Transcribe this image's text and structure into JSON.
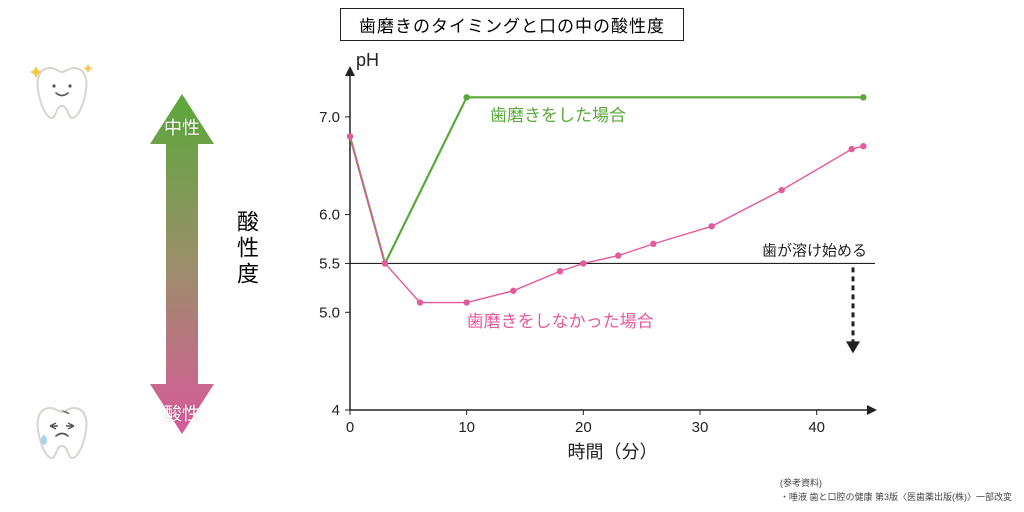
{
  "title": "歯磨きのタイミングと口の中の酸性度",
  "left": {
    "neutral_label": "中性",
    "acid_label": "酸性",
    "vertical_label": "酸性度",
    "grad_top": "#5aa83a",
    "grad_mid": "#9b8f6a",
    "grad_bot": "#d8599a"
  },
  "chart": {
    "type": "line",
    "y_axis_label": "pH",
    "x_axis_label": "時間（分）",
    "xlim": [
      0,
      45
    ],
    "ylim": [
      4,
      7.5
    ],
    "xticks": [
      0,
      10,
      20,
      30,
      40
    ],
    "yticks": [
      4,
      5.0,
      5.5,
      6.0,
      7.0
    ],
    "ytick_labels": [
      "4",
      "5.0",
      "5.5",
      "6.0",
      "7.0"
    ],
    "ref_line": {
      "y": 5.5,
      "label": "歯が溶け始める"
    },
    "series": [
      {
        "name": "brushed",
        "label": "歯磨きをした場合",
        "color": "#5aa83a",
        "width": 2.2,
        "marker": "circle",
        "points": [
          [
            0,
            6.8
          ],
          [
            3,
            5.5
          ],
          [
            10,
            7.2
          ],
          [
            44,
            7.2
          ]
        ]
      },
      {
        "name": "not_brushed",
        "label": "歯磨きをしなかった場合",
        "color": "#e35a9d",
        "width": 1.4,
        "marker": "circle",
        "points": [
          [
            0,
            6.8
          ],
          [
            3,
            5.5
          ],
          [
            6,
            5.1
          ],
          [
            10,
            5.1
          ],
          [
            14,
            5.22
          ],
          [
            18,
            5.42
          ],
          [
            20,
            5.5
          ],
          [
            23,
            5.58
          ],
          [
            26,
            5.7
          ],
          [
            31,
            5.88
          ],
          [
            37,
            6.25
          ],
          [
            43,
            6.67
          ],
          [
            44,
            6.7
          ]
        ]
      }
    ],
    "axis_color": "#222222",
    "background": "#ffffff"
  },
  "footer": {
    "ref_head": "(参考資料)",
    "ref_line": "・唾液 歯と口腔の健康 第3版〈医歯薬出版(株)〉一部改変"
  }
}
